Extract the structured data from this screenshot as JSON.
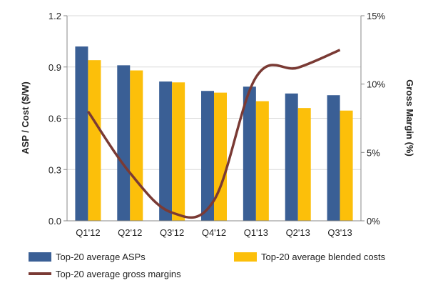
{
  "chart_data": {
    "type": "bar",
    "categories": [
      "Q1'12",
      "Q2'12",
      "Q3'12",
      "Q4'12",
      "Q1'13",
      "Q2'13",
      "Q3'13"
    ],
    "series": [
      {
        "name": "Top-20 average ASPs",
        "type": "bar",
        "axis": "left",
        "color": "#3a5f95",
        "values": [
          1.02,
          0.91,
          0.815,
          0.76,
          0.785,
          0.745,
          0.735
        ]
      },
      {
        "name": "Top-20 average blended costs",
        "type": "bar",
        "axis": "left",
        "color": "#fcbf0a",
        "values": [
          0.94,
          0.88,
          0.81,
          0.75,
          0.7,
          0.66,
          0.645
        ]
      },
      {
        "name": "Top-20 average gross margins",
        "type": "line",
        "axis": "right",
        "color": "#7a3a34",
        "values": [
          8.0,
          3.5,
          0.6,
          1.5,
          10.5,
          11.2,
          12.5
        ]
      }
    ],
    "y_left": {
      "label": "ASP / Cost ($/W)",
      "lim": [
        0,
        1.2
      ],
      "ticks": [
        0.0,
        0.3,
        0.6,
        0.9,
        1.2
      ],
      "tick_labels": [
        "0.0",
        "0.3",
        "0.6",
        "0.9",
        "1.2"
      ]
    },
    "y_right": {
      "label": "Gross Margin (%)",
      "lim": [
        0,
        15
      ],
      "ticks": [
        0,
        5,
        10,
        15
      ],
      "tick_labels": [
        "0%",
        "5%",
        "10%",
        "15%"
      ]
    },
    "grid": true,
    "legend_position": "bottom"
  }
}
